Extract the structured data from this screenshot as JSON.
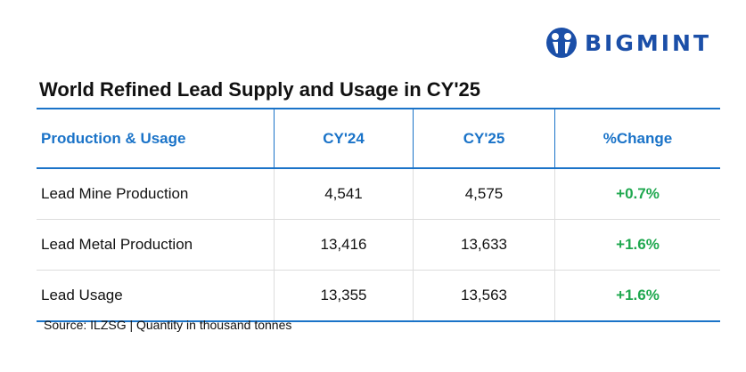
{
  "logo": {
    "text": "BIGMINT",
    "brand_color": "#1b4fa8"
  },
  "title": "World Refined Lead Supply and Usage in CY'25",
  "table": {
    "headers": [
      "Production & Usage",
      "CY'24",
      "CY'25",
      "%Change"
    ],
    "rows": [
      {
        "label": "Lead Mine Production",
        "cy24": "4,541",
        "cy25": "4,575",
        "change": "+0.7%"
      },
      {
        "label": "Lead Metal Production",
        "cy24": "13,416",
        "cy25": "13,633",
        "change": "+1.6%"
      },
      {
        "label": "Lead Usage",
        "cy24": "13,355",
        "cy25": "13,563",
        "change": "+1.6%"
      }
    ]
  },
  "source": "Source: ILZSG | Quantity in thousand tonnes",
  "colors": {
    "header": "#1a73c8",
    "positive": "#1fa84f"
  }
}
